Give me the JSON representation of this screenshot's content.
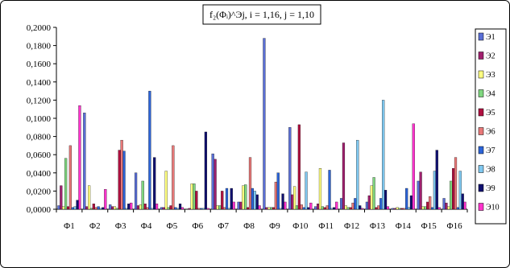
{
  "chart_data": {
    "type": "bar",
    "title": "f₂(Φᵢ)^Эj, i = 1,16, j = 1,10",
    "categories": [
      "Φ1",
      "Φ2",
      "Φ3",
      "Φ4",
      "Φ5",
      "Φ6",
      "Φ7",
      "Φ8",
      "Φ9",
      "Φ10",
      "Φ11",
      "Φ12",
      "Φ13",
      "Φ14",
      "Φ15",
      "Φ16"
    ],
    "ylim": [
      0,
      0.2
    ],
    "yticks": [
      "0,0000",
      "0,0200",
      "0,0400",
      "0,0600",
      "0,0800",
      "0,1000",
      "0,1200",
      "0,1400",
      "0,1600",
      "0,1800",
      "0,2000"
    ],
    "grid": false,
    "legend_position": "right",
    "series": [
      {
        "name": "Э1",
        "color": "#5a6fd6",
        "values": [
          0.004,
          0.106,
          0.005,
          0.04,
          0.002,
          0.0,
          0.061,
          0.008,
          0.188,
          0.09,
          0.003,
          0.012,
          0.008,
          0.001,
          0.031,
          0.012
        ]
      },
      {
        "name": "Э2",
        "color": "#a0206e",
        "values": [
          0.026,
          0.003,
          0.003,
          0.004,
          0.002,
          0.001,
          0.055,
          0.008,
          0.002,
          0.016,
          0.006,
          0.073,
          0.015,
          0.001,
          0.041,
          0.007
        ]
      },
      {
        "name": "Э3",
        "color": "#ffff80",
        "values": [
          0.003,
          0.026,
          0.003,
          0.005,
          0.042,
          0.028,
          0.004,
          0.026,
          0.002,
          0.025,
          0.045,
          0.004,
          0.026,
          0.002,
          0.003,
          0.003
        ]
      },
      {
        "name": "Э4",
        "color": "#7fd67f",
        "values": [
          0.056,
          0.001,
          0.001,
          0.031,
          0.002,
          0.028,
          0.004,
          0.027,
          0.002,
          0.004,
          0.003,
          0.002,
          0.035,
          0.001,
          0.003,
          0.031
        ]
      },
      {
        "name": "Э5",
        "color": "#b01040",
        "values": [
          0.003,
          0.006,
          0.065,
          0.006,
          0.004,
          0.02,
          0.02,
          0.002,
          0.002,
          0.093,
          0.002,
          0.002,
          0.002,
          0.001,
          0.008,
          0.045
        ]
      },
      {
        "name": "Э6",
        "color": "#e87878",
        "values": [
          0.07,
          0.002,
          0.076,
          0.002,
          0.07,
          0.001,
          0.002,
          0.057,
          0.03,
          0.005,
          0.004,
          0.007,
          0.004,
          0.001,
          0.014,
          0.057
        ]
      },
      {
        "name": "Э7",
        "color": "#2c64d8",
        "values": [
          0.002,
          0.003,
          0.064,
          0.13,
          0.002,
          0.001,
          0.023,
          0.023,
          0.04,
          0.002,
          0.043,
          0.012,
          0.012,
          0.023,
          0.002,
          0.002
        ]
      },
      {
        "name": "Э8",
        "color": "#7fc8f0",
        "values": [
          0.003,
          0.001,
          0.001,
          0.001,
          0.001,
          0.001,
          0.001,
          0.02,
          0.001,
          0.041,
          0.001,
          0.076,
          0.12,
          0.002,
          0.042,
          0.042
        ]
      },
      {
        "name": "Э9",
        "color": "#101070",
        "values": [
          0.01,
          0.002,
          0.006,
          0.057,
          0.006,
          0.085,
          0.023,
          0.016,
          0.017,
          0.002,
          0.002,
          0.004,
          0.021,
          0.015,
          0.065,
          0.017
        ]
      },
      {
        "name": "Э10",
        "color": "#ff33cc",
        "values": [
          0.114,
          0.022,
          0.007,
          0.006,
          0.002,
          0.001,
          0.008,
          0.004,
          0.008,
          0.007,
          0.008,
          0.001,
          0.003,
          0.094,
          0.002,
          0.008
        ]
      }
    ]
  }
}
